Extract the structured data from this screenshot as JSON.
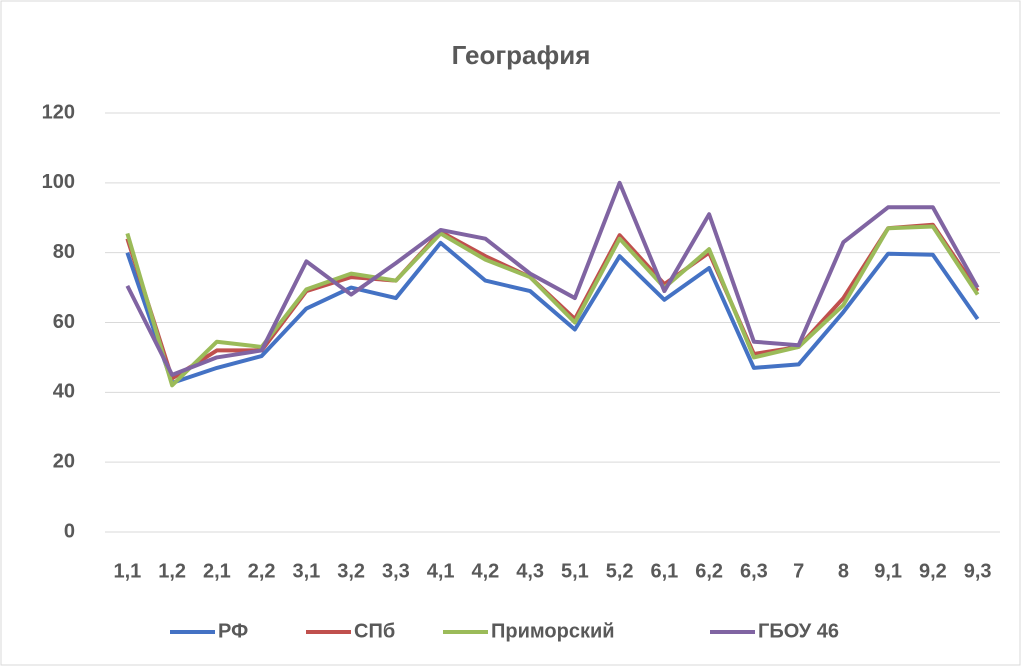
{
  "chart_data": {
    "type": "line",
    "title": "География",
    "categories": [
      "1,1",
      "1,2",
      "2,1",
      "2,2",
      "3,1",
      "3,2",
      "3,3",
      "4,1",
      "4,2",
      "4,3",
      "5,1",
      "5,2",
      "6,1",
      "6,2",
      "6,3",
      "7",
      "8",
      "9,1",
      "9,2",
      "9,3"
    ],
    "series": [
      {
        "name": "РФ",
        "color": "#4472c4",
        "values": [
          80,
          42.7,
          47,
          50.4,
          64,
          70,
          67,
          82.8,
          72,
          69,
          58,
          79,
          66.5,
          75.6,
          47,
          48,
          63,
          79.7,
          79.4,
          61
        ]
      },
      {
        "name": "СПб",
        "color": "#c0504d",
        "values": [
          84,
          44,
          52,
          52,
          69,
          73,
          72,
          86,
          79,
          73,
          61,
          85,
          71,
          80,
          51,
          53,
          67,
          87,
          88,
          69
        ]
      },
      {
        "name": "Приморский",
        "color": "#9bbb59",
        "values": [
          85.5,
          42,
          54.5,
          53,
          69.5,
          74,
          72,
          85.5,
          78,
          73,
          60,
          84,
          70,
          81,
          50,
          53,
          65,
          87,
          87.5,
          68
        ]
      },
      {
        "name": "ГБОУ 46",
        "color": "#8064a2",
        "values": [
          70.5,
          45,
          50,
          52,
          77.5,
          68,
          77,
          86.5,
          84,
          74,
          67,
          100,
          69,
          91,
          54.5,
          53.5,
          83,
          93,
          93,
          70
        ]
      }
    ],
    "ylim": [
      0,
      120
    ],
    "yticks": [
      0,
      20,
      40,
      60,
      80,
      100,
      120
    ],
    "grid": true,
    "legend": "bottom"
  }
}
